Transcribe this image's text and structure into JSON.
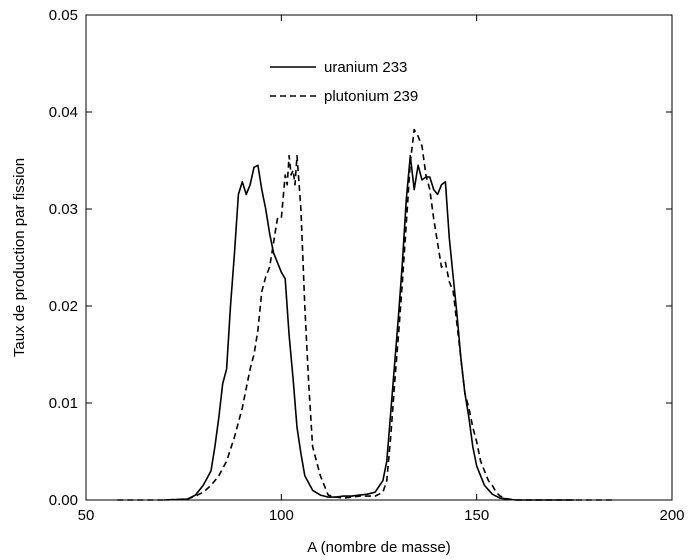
{
  "chart_data": {
    "type": "line",
    "title": "",
    "xlabel": "A (nombre de masse)",
    "ylabel": "Taux de production par fission",
    "xlim": [
      50,
      200
    ],
    "ylim": [
      0,
      0.05
    ],
    "x_ticks": [
      50,
      100,
      150,
      200
    ],
    "x_tick_labels": [
      "50",
      "100",
      "150",
      "200"
    ],
    "y_ticks": [
      0,
      0.01,
      0.02,
      0.03,
      0.04,
      0.05
    ],
    "y_tick_labels": [
      "0.00",
      "0.01",
      "0.02",
      "0.03",
      "0.04",
      "0.05"
    ],
    "grid": false,
    "legend_position": "top-center",
    "series": [
      {
        "name": "uranium 233",
        "style": "solid",
        "color": "#000000",
        "x": [
          70,
          76,
          78,
          80,
          82,
          83,
          84,
          85,
          86,
          87,
          88,
          89,
          90,
          91,
          92,
          93,
          94,
          95,
          96,
          97,
          98,
          99,
          100,
          101,
          102,
          103,
          104,
          105,
          106,
          108,
          110,
          112,
          114,
          116,
          118,
          120,
          122,
          124,
          126,
          127,
          128,
          129,
          130,
          131,
          132,
          133,
          134,
          135,
          136,
          137,
          138,
          139,
          140,
          141,
          142,
          143,
          144,
          145,
          146,
          147,
          148,
          149,
          150,
          152,
          154,
          156,
          160,
          165,
          175
        ],
        "y": [
          0,
          0.0001,
          0.0005,
          0.0015,
          0.003,
          0.0055,
          0.0085,
          0.012,
          0.0135,
          0.02,
          0.0255,
          0.0315,
          0.0328,
          0.0315,
          0.0325,
          0.0343,
          0.0345,
          0.032,
          0.03,
          0.0275,
          0.0255,
          0.0245,
          0.0235,
          0.0228,
          0.017,
          0.0125,
          0.0075,
          0.0048,
          0.0025,
          0.001,
          0.0005,
          0.0003,
          0.0003,
          0.0004,
          0.0004,
          0.0005,
          0.0006,
          0.0008,
          0.002,
          0.004,
          0.009,
          0.014,
          0.019,
          0.0245,
          0.031,
          0.0355,
          0.032,
          0.0345,
          0.033,
          0.0333,
          0.0333,
          0.032,
          0.0315,
          0.0325,
          0.0328,
          0.027,
          0.023,
          0.019,
          0.0145,
          0.011,
          0.0085,
          0.0055,
          0.0035,
          0.0015,
          0.0006,
          0.0002,
          0,
          0,
          0
        ]
      },
      {
        "name": "plutonium 239",
        "style": "dashed",
        "color": "#000000",
        "x": [
          58,
          70,
          76,
          78,
          80,
          82,
          84,
          86,
          88,
          90,
          92,
          93,
          94,
          95,
          96,
          97,
          98,
          99,
          100,
          101,
          101.5,
          102,
          102.5,
          103,
          103.5,
          104,
          105,
          106,
          107,
          108,
          110,
          112,
          114,
          116,
          118,
          120,
          122,
          124,
          126,
          127,
          128,
          129,
          130,
          131,
          132,
          133,
          134,
          135,
          136,
          137,
          138,
          139,
          140,
          141,
          142,
          143,
          144,
          145,
          146,
          147,
          148,
          149,
          150,
          151,
          152,
          153,
          154,
          155,
          156,
          158,
          160,
          170,
          185
        ],
        "y": [
          0,
          0,
          0.0001,
          0.0004,
          0.0008,
          0.0015,
          0.0025,
          0.004,
          0.0065,
          0.0095,
          0.0135,
          0.015,
          0.0175,
          0.0215,
          0.023,
          0.024,
          0.0265,
          0.029,
          0.029,
          0.0335,
          0.0325,
          0.0355,
          0.0335,
          0.034,
          0.0325,
          0.0355,
          0.03,
          0.02,
          0.012,
          0.0055,
          0.0025,
          0.0005,
          0.0003,
          0.0002,
          0.0003,
          0.0004,
          0.0004,
          0.0004,
          0.0008,
          0.002,
          0.0065,
          0.012,
          0.017,
          0.0225,
          0.0285,
          0.0348,
          0.0382,
          0.0375,
          0.0365,
          0.0335,
          0.032,
          0.029,
          0.0265,
          0.024,
          0.0245,
          0.0225,
          0.0215,
          0.018,
          0.0145,
          0.011,
          0.0095,
          0.0075,
          0.006,
          0.004,
          0.003,
          0.002,
          0.0015,
          0.0008,
          0.0004,
          0.0001,
          0,
          0,
          0
        ]
      }
    ]
  }
}
